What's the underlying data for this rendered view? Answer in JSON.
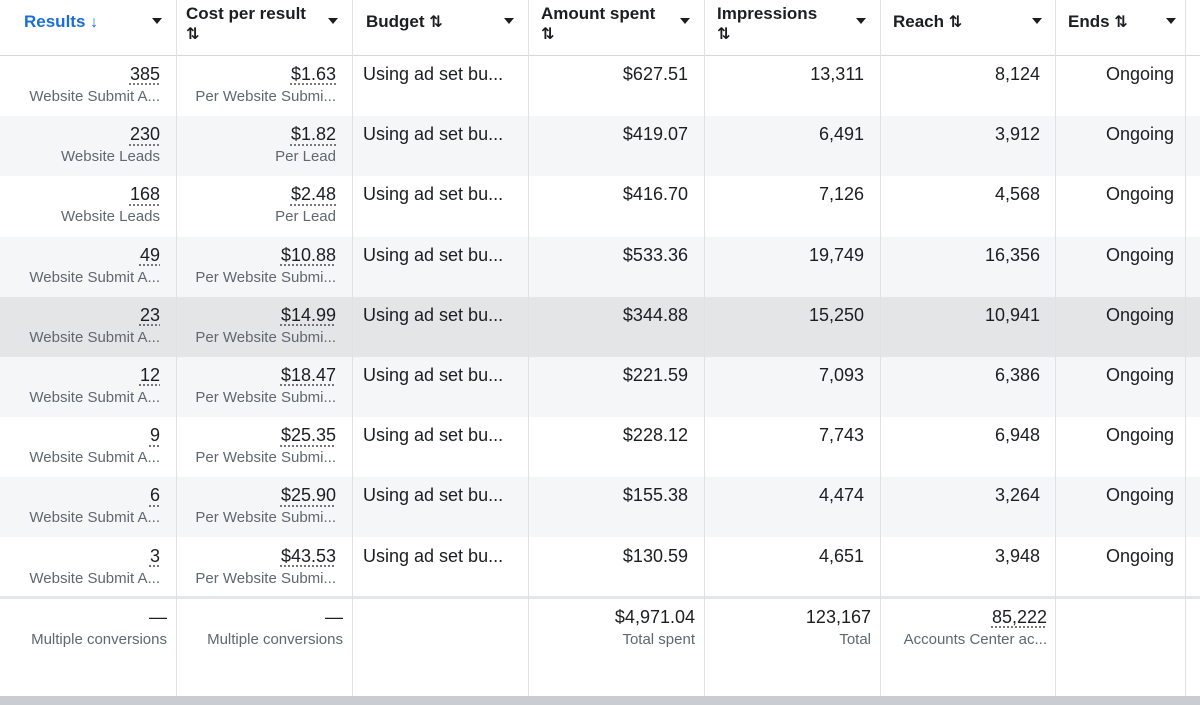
{
  "columns": [
    {
      "label": "Results",
      "sort": "↓",
      "active": true
    },
    {
      "label": "Cost per result",
      "sort": "⇅"
    },
    {
      "label": "Budget",
      "sort": "⇅"
    },
    {
      "label": "Amount spent",
      "sort": "⇅"
    },
    {
      "label": "Impressions",
      "sort": "⇅"
    },
    {
      "label": "Reach",
      "sort": "⇅"
    },
    {
      "label": "Ends",
      "sort": "⇅"
    }
  ],
  "rows": [
    {
      "results": "385",
      "results_type": "Website Submit A...",
      "cpr": "$1.63",
      "cpr_type": "Per Website Submi...",
      "budget": "Using ad set bu...",
      "spent": "$627.51",
      "impressions": "13,311",
      "reach": "8,124",
      "ends": "Ongoing"
    },
    {
      "results": "230",
      "results_type": "Website Leads",
      "cpr": "$1.82",
      "cpr_type": "Per Lead",
      "budget": "Using ad set bu...",
      "spent": "$419.07",
      "impressions": "6,491",
      "reach": "3,912",
      "ends": "Ongoing"
    },
    {
      "results": "168",
      "results_type": "Website Leads",
      "cpr": "$2.48",
      "cpr_type": "Per Lead",
      "budget": "Using ad set bu...",
      "spent": "$416.70",
      "impressions": "7,126",
      "reach": "4,568",
      "ends": "Ongoing"
    },
    {
      "results": "49",
      "results_type": "Website Submit A...",
      "cpr": "$10.88",
      "cpr_type": "Per Website Submi...",
      "budget": "Using ad set bu...",
      "spent": "$533.36",
      "impressions": "19,749",
      "reach": "16,356",
      "ends": "Ongoing"
    },
    {
      "results": "23",
      "results_type": "Website Submit A...",
      "cpr": "$14.99",
      "cpr_type": "Per Website Submi...",
      "budget": "Using ad set bu...",
      "spent": "$344.88",
      "impressions": "15,250",
      "reach": "10,941",
      "ends": "Ongoing"
    },
    {
      "results": "12",
      "results_type": "Website Submit A...",
      "cpr": "$18.47",
      "cpr_type": "Per Website Submi...",
      "budget": "Using ad set bu...",
      "spent": "$221.59",
      "impressions": "7,093",
      "reach": "6,386",
      "ends": "Ongoing"
    },
    {
      "results": "9",
      "results_type": "Website Submit A...",
      "cpr": "$25.35",
      "cpr_type": "Per Website Submi...",
      "budget": "Using ad set bu...",
      "spent": "$228.12",
      "impressions": "7,743",
      "reach": "6,948",
      "ends": "Ongoing"
    },
    {
      "results": "6",
      "results_type": "Website Submit A...",
      "cpr": "$25.90",
      "cpr_type": "Per Website Submi...",
      "budget": "Using ad set bu...",
      "spent": "$155.38",
      "impressions": "4,474",
      "reach": "3,264",
      "ends": "Ongoing"
    },
    {
      "results": "3",
      "results_type": "Website Submit A...",
      "cpr": "$43.53",
      "cpr_type": "Per Website Submi...",
      "budget": "Using ad set bu...",
      "spent": "$130.59",
      "impressions": "4,651",
      "reach": "3,948",
      "ends": "Ongoing"
    }
  ],
  "totals": {
    "results": "—",
    "results_note": "Multiple conversions",
    "cpr": "—",
    "cpr_note": "Multiple conversions",
    "spent": "$4,971.04",
    "spent_note": "Total spent",
    "impressions": "123,167",
    "impressions_note": "Total",
    "reach": "85,222",
    "reach_note": "Accounts Center ac..."
  },
  "colors": {
    "accent": "#1a6ed8",
    "text": "#1c1e21",
    "muted": "#606770",
    "row_alt": "#f5f6f7",
    "row_hover": "#e4e5e7"
  }
}
